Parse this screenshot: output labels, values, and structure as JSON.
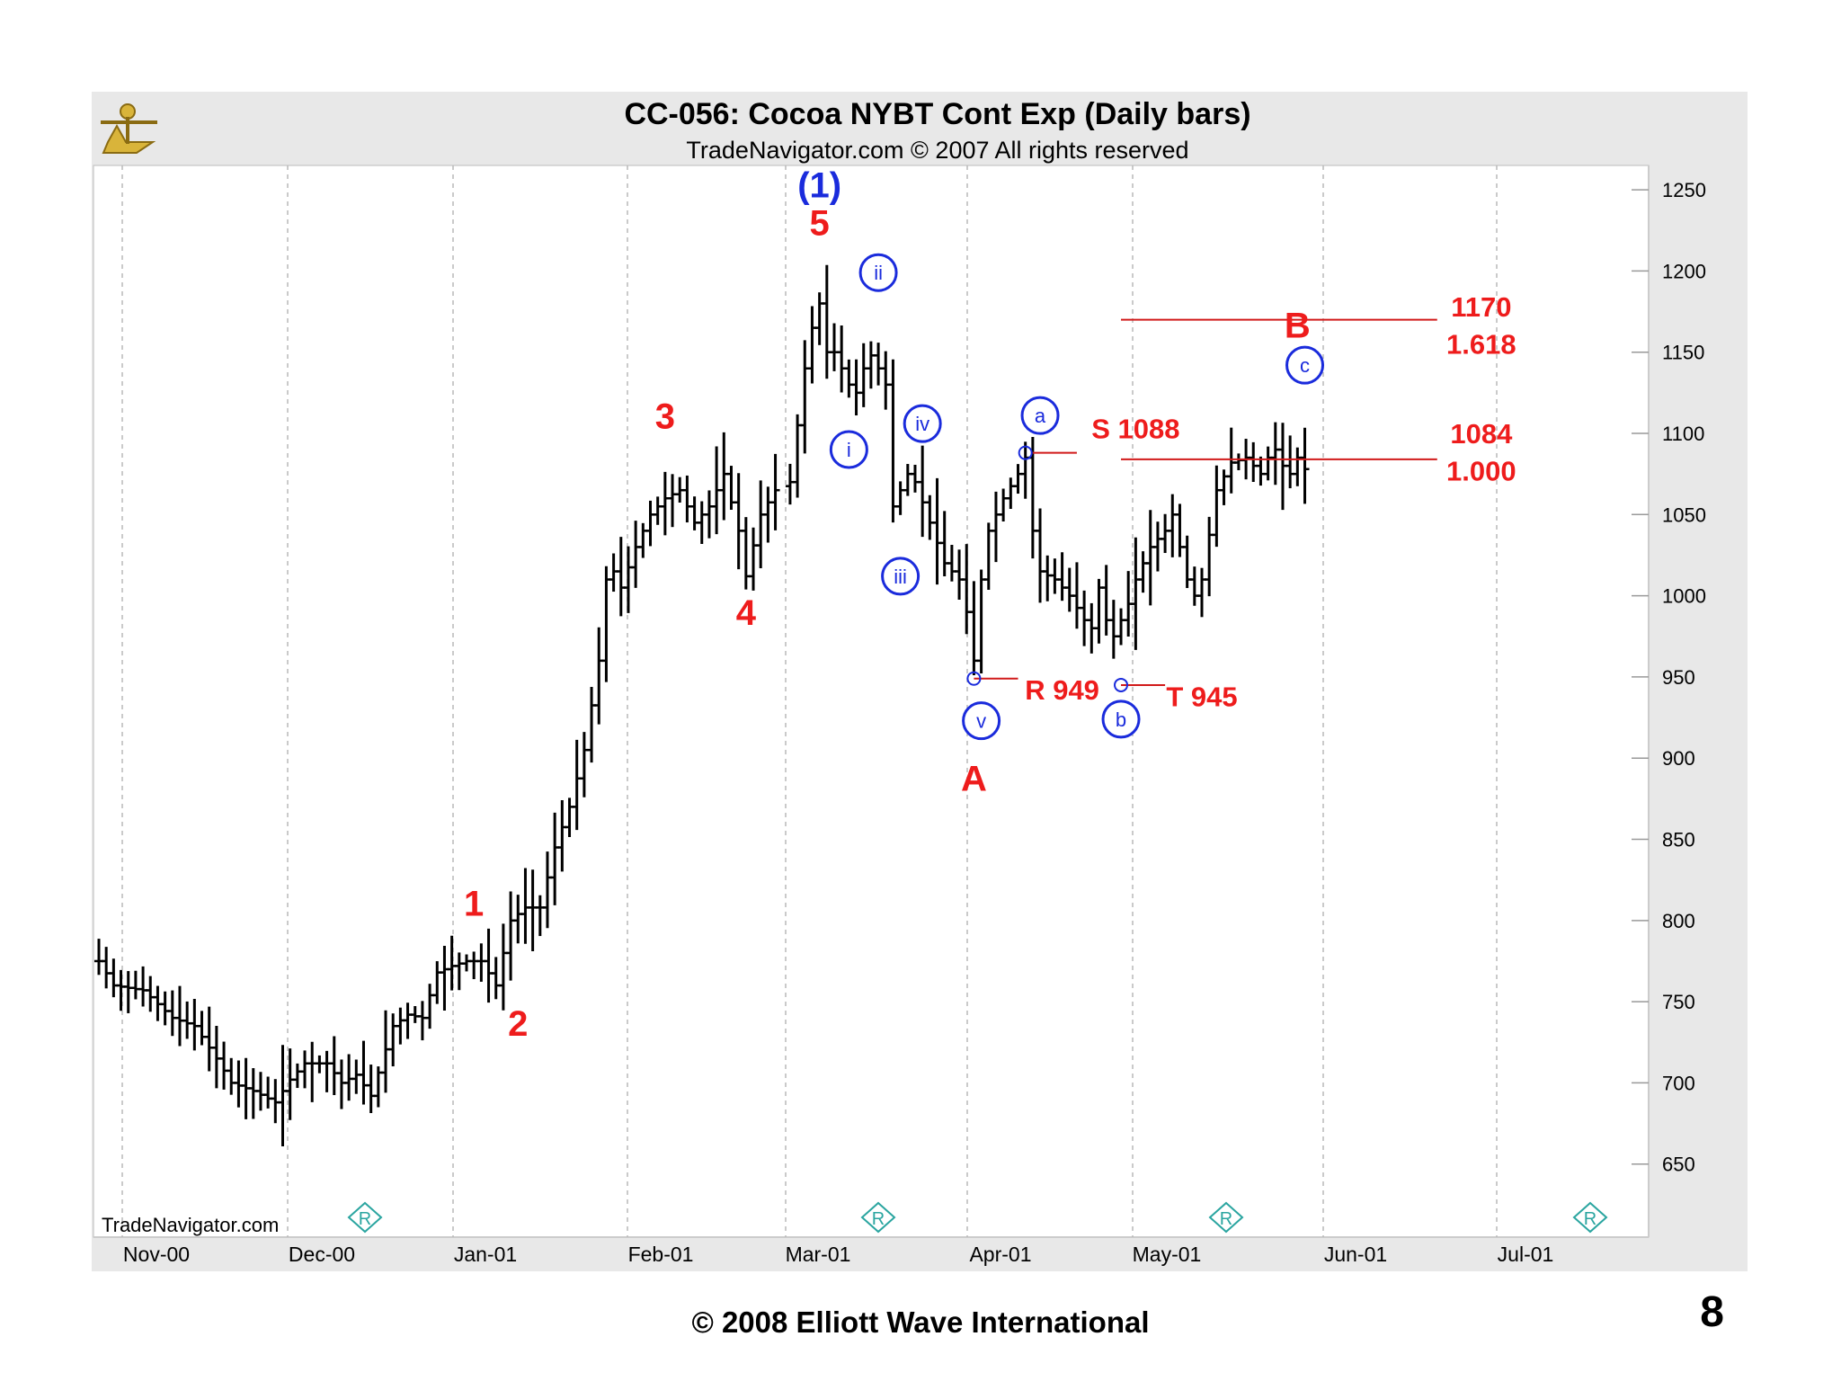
{
  "chart_data": {
    "type": "bar",
    "title": "CC-056:  Cocoa NYBT Cont Exp  (Daily bars)",
    "subtitle": "TradeNavigator.com © 2007 All rights reserved",
    "watermark": "TradeNavigator.com",
    "y_ticks": [
      "1250",
      "1200",
      "1150",
      "1100",
      "1050",
      "1000",
      "950",
      "900",
      "850",
      "800",
      "750",
      "700",
      "650"
    ],
    "x_ticks": [
      "Nov-00",
      "Dec-00",
      "Jan-01",
      "Feb-01",
      "Mar-01",
      "Apr-01",
      "May-01",
      "Jun-01",
      "Jul-01"
    ],
    "ylim": [
      605,
      1265
    ],
    "grid": "vertical dashed",
    "colors": {
      "bars": "#000000",
      "labels": "#ee1c1c",
      "wave": "#1a2bdc",
      "panel": "#e8e8e8",
      "diamond": "#2aa5a0"
    },
    "price_path_closes": [
      [
        0,
        775
      ],
      [
        2,
        760
      ],
      [
        6,
        757
      ],
      [
        10,
        740
      ],
      [
        13,
        735
      ],
      [
        16,
        715
      ],
      [
        18,
        700
      ],
      [
        21,
        695
      ],
      [
        24,
        688
      ],
      [
        26,
        702
      ],
      [
        28,
        712
      ],
      [
        31,
        712
      ],
      [
        33,
        700
      ],
      [
        35,
        705
      ],
      [
        37,
        692
      ],
      [
        40,
        735
      ],
      [
        42,
        742
      ],
      [
        44,
        740
      ],
      [
        46,
        768
      ],
      [
        48,
        772
      ],
      [
        50,
        775
      ],
      [
        52,
        775
      ],
      [
        54,
        760
      ],
      [
        56,
        800
      ],
      [
        58,
        808
      ],
      [
        60,
        808
      ],
      [
        62,
        845
      ],
      [
        64,
        870
      ],
      [
        66,
        905
      ],
      [
        68,
        960
      ],
      [
        69,
        1010
      ],
      [
        70,
        1015
      ],
      [
        71,
        1005
      ],
      [
        73,
        1030
      ],
      [
        75,
        1050
      ],
      [
        77,
        1060
      ],
      [
        79,
        1065
      ],
      [
        81,
        1045
      ],
      [
        83,
        1055
      ],
      [
        85,
        1075
      ],
      [
        87,
        1040
      ],
      [
        88,
        1012
      ],
      [
        90,
        1050
      ],
      [
        92,
        1065
      ],
      [
        94,
        1070
      ],
      [
        95,
        1105
      ],
      [
        96,
        1140
      ],
      [
        97,
        1165
      ],
      [
        98,
        1180
      ],
      [
        99,
        1150
      ],
      [
        100,
        1150
      ],
      [
        101,
        1140
      ],
      [
        102,
        1130
      ],
      [
        103,
        1125
      ],
      [
        104,
        1140
      ],
      [
        105,
        1148
      ],
      [
        106,
        1140
      ],
      [
        107,
        1130
      ],
      [
        108,
        1055
      ],
      [
        109,
        1065
      ],
      [
        110,
        1075
      ],
      [
        111,
        1070
      ],
      [
        113,
        1045
      ],
      [
        115,
        1020
      ],
      [
        117,
        1010
      ],
      [
        118,
        990
      ],
      [
        119,
        960
      ],
      [
        120,
        1010
      ],
      [
        121,
        1040
      ],
      [
        123,
        1060
      ],
      [
        125,
        1075
      ],
      [
        126,
        1085
      ],
      [
        127,
        1040
      ],
      [
        128,
        1015
      ],
      [
        130,
        1010
      ],
      [
        132,
        1000
      ],
      [
        134,
        985
      ],
      [
        135,
        980
      ],
      [
        136,
        1005
      ],
      [
        137,
        985
      ],
      [
        138,
        975
      ],
      [
        140,
        995
      ],
      [
        141,
        1010
      ],
      [
        143,
        1030
      ],
      [
        145,
        1040
      ],
      [
        146,
        1050
      ],
      [
        148,
        1010
      ],
      [
        149,
        1000
      ],
      [
        150,
        1010
      ],
      [
        152,
        1065
      ],
      [
        154,
        1082
      ],
      [
        156,
        1085
      ],
      [
        158,
        1075
      ],
      [
        159,
        1085
      ],
      [
        160,
        1090
      ],
      [
        161,
        1080
      ],
      [
        162,
        1075
      ],
      [
        163,
        1085
      ],
      [
        164,
        1078
      ]
    ],
    "annotations_red": [
      {
        "text": "5",
        "x": 98,
        "y": 1222
      },
      {
        "text": "3",
        "x": 77,
        "y": 1103
      },
      {
        "text": "4",
        "x": 88,
        "y": 982
      },
      {
        "text": "1",
        "x": 51,
        "y": 803
      },
      {
        "text": "2",
        "x": 57,
        "y": 729
      },
      {
        "text": "A",
        "x": 119,
        "y": 880
      },
      {
        "text": "B",
        "x": 163,
        "y": 1159
      },
      {
        "text": "S 1088",
        "x": 141,
        "y": 1097
      },
      {
        "text": "R 949",
        "x": 131,
        "y": 936
      },
      {
        "text": "T 945",
        "x": 150,
        "y": 932
      },
      {
        "text": "1170",
        "x": 188,
        "y": 1172
      },
      {
        "text": "1.618",
        "x": 188,
        "y": 1149
      },
      {
        "text": "1084",
        "x": 188,
        "y": 1094
      },
      {
        "text": "1.000",
        "x": 188,
        "y": 1071
      }
    ],
    "annotations_wave": [
      {
        "text": "(1)",
        "x": 98,
        "y": 1253
      },
      {
        "text": "ii",
        "x": 106,
        "y": 1199
      },
      {
        "text": "i",
        "x": 102,
        "y": 1090
      },
      {
        "text": "iv",
        "x": 112,
        "y": 1106
      },
      {
        "text": "iii",
        "x": 109,
        "y": 1012
      },
      {
        "text": "v",
        "x": 120,
        "y": 923
      },
      {
        "text": "a",
        "x": 128,
        "y": 1111
      },
      {
        "text": "b",
        "x": 139,
        "y": 924
      },
      {
        "text": "c",
        "x": 164,
        "y": 1142
      }
    ],
    "level_lines": [
      {
        "value": 1170,
        "x_from": 139,
        "x_to": 182
      },
      {
        "value": 1084,
        "x_from": 139,
        "x_to": 182
      },
      {
        "value": 1088,
        "x_from": 127,
        "x_to": 133
      },
      {
        "value": 949,
        "x_from": 119,
        "x_to": 125
      },
      {
        "value": 945,
        "x_from": 139,
        "x_to": 145
      }
    ]
  },
  "footer": "© 2008 Elliott Wave International",
  "page_number": "8"
}
